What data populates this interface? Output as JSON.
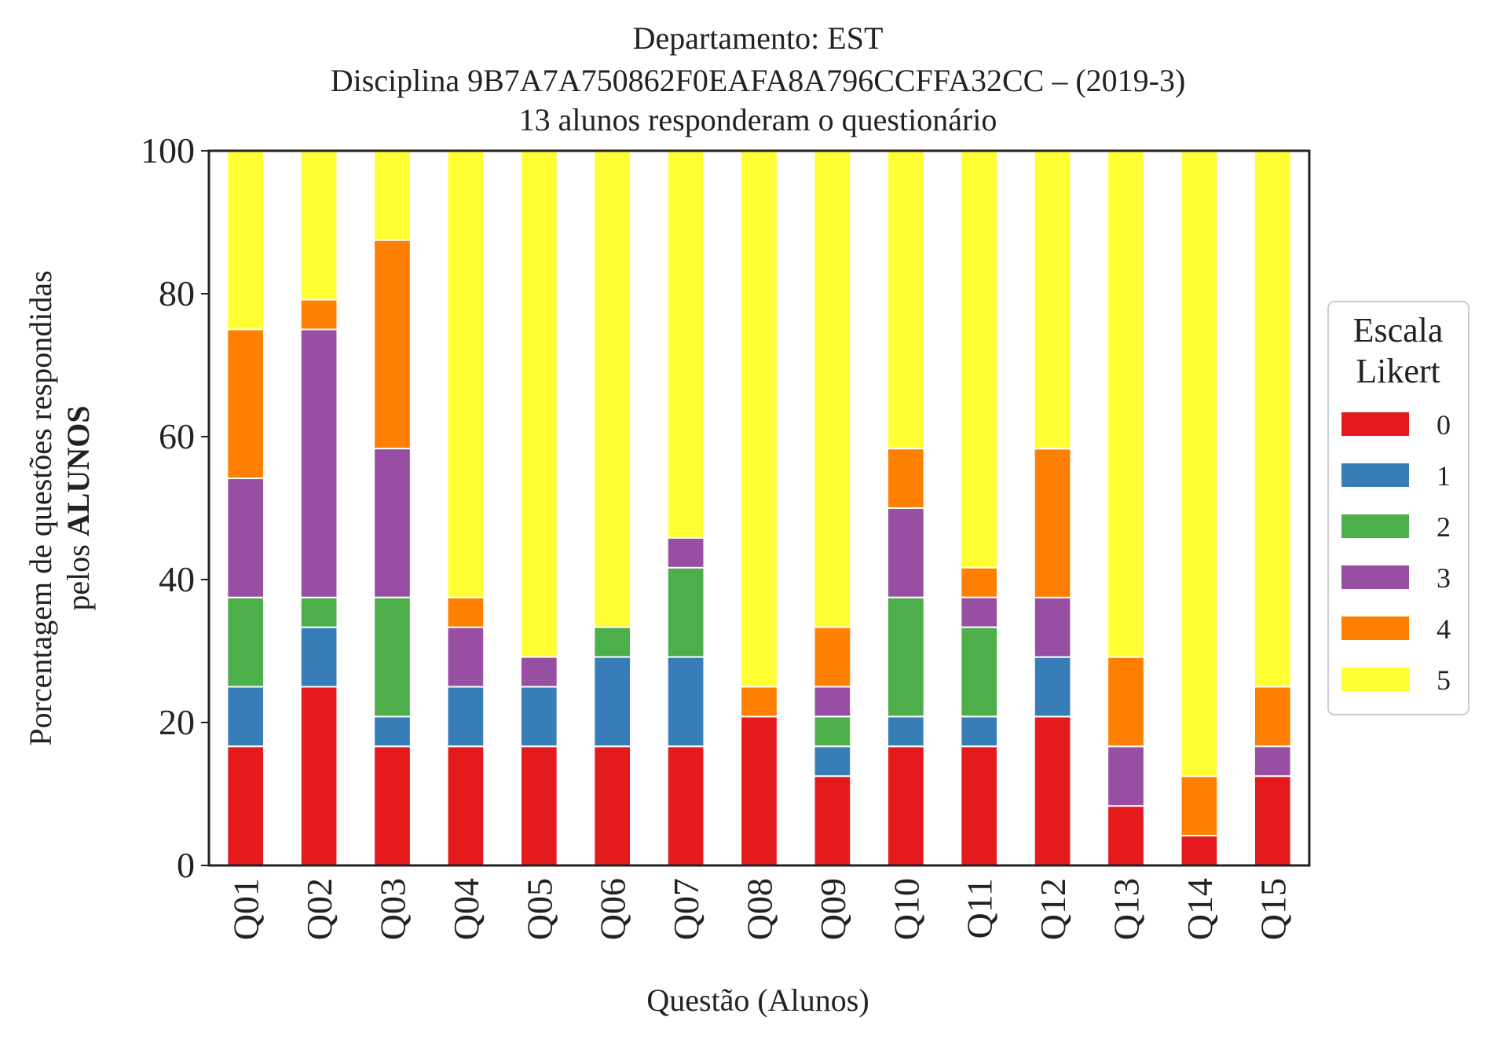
{
  "chart_data": {
    "type": "bar",
    "stacked": true,
    "title_lines": [
      "Departamento: EST",
      "Disciplina 9B7A7A750862F0EAFA8A796CCFFA32CC – (2019-3)",
      "13 alunos responderam o questionário"
    ],
    "xlabel": "Questão (Alunos)",
    "ylabel_lines": [
      {
        "normal": "Porcentagem de questões respondidas",
        "bold": ""
      },
      {
        "normal": "pelos ",
        "bold": "ALUNOS"
      }
    ],
    "ylim": [
      0,
      100
    ],
    "yticks": [
      0,
      20,
      40,
      60,
      80,
      100
    ],
    "ytick_labels": [
      "0",
      "20",
      "40",
      "60",
      "80",
      "100"
    ],
    "grid": false,
    "categories": [
      "Q01",
      "Q02",
      "Q03",
      "Q04",
      "Q05",
      "Q06",
      "Q07",
      "Q08",
      "Q09",
      "Q10",
      "Q11",
      "Q12",
      "Q13",
      "Q14",
      "Q15"
    ],
    "series": [
      {
        "name": "0",
        "color": "#e41a1c",
        "values": [
          16.67,
          25.0,
          16.67,
          16.67,
          16.67,
          16.67,
          16.67,
          20.83,
          12.5,
          16.67,
          16.67,
          20.83,
          8.33,
          4.17,
          12.5
        ]
      },
      {
        "name": "1",
        "color": "#377eb8",
        "values": [
          8.33,
          8.33,
          4.17,
          8.33,
          8.33,
          12.5,
          12.5,
          0,
          4.17,
          4.17,
          4.17,
          8.33,
          0,
          0,
          0
        ]
      },
      {
        "name": "2",
        "color": "#4daf4a",
        "values": [
          12.5,
          4.17,
          16.67,
          0,
          0,
          4.17,
          12.5,
          0,
          4.17,
          16.67,
          12.5,
          0,
          0,
          0,
          0
        ]
      },
      {
        "name": "3",
        "color": "#984ea3",
        "values": [
          16.67,
          37.5,
          20.83,
          8.33,
          4.17,
          0,
          4.17,
          0,
          4.17,
          12.5,
          4.17,
          8.33,
          8.33,
          0,
          4.17
        ]
      },
      {
        "name": "4",
        "color": "#ff7f00",
        "values": [
          20.83,
          4.17,
          29.17,
          4.17,
          0,
          0,
          0,
          4.17,
          8.33,
          8.33,
          4.17,
          20.83,
          12.5,
          8.33,
          8.33
        ]
      },
      {
        "name": "5",
        "color": "#ffff33",
        "values": [
          25.0,
          20.83,
          12.5,
          62.5,
          70.83,
          66.67,
          54.17,
          75.0,
          66.67,
          41.67,
          58.33,
          41.67,
          70.83,
          87.5,
          75.0
        ]
      }
    ],
    "legend": {
      "title_lines": [
        "Escala",
        "Likert"
      ],
      "placement": "center-right outside"
    }
  }
}
